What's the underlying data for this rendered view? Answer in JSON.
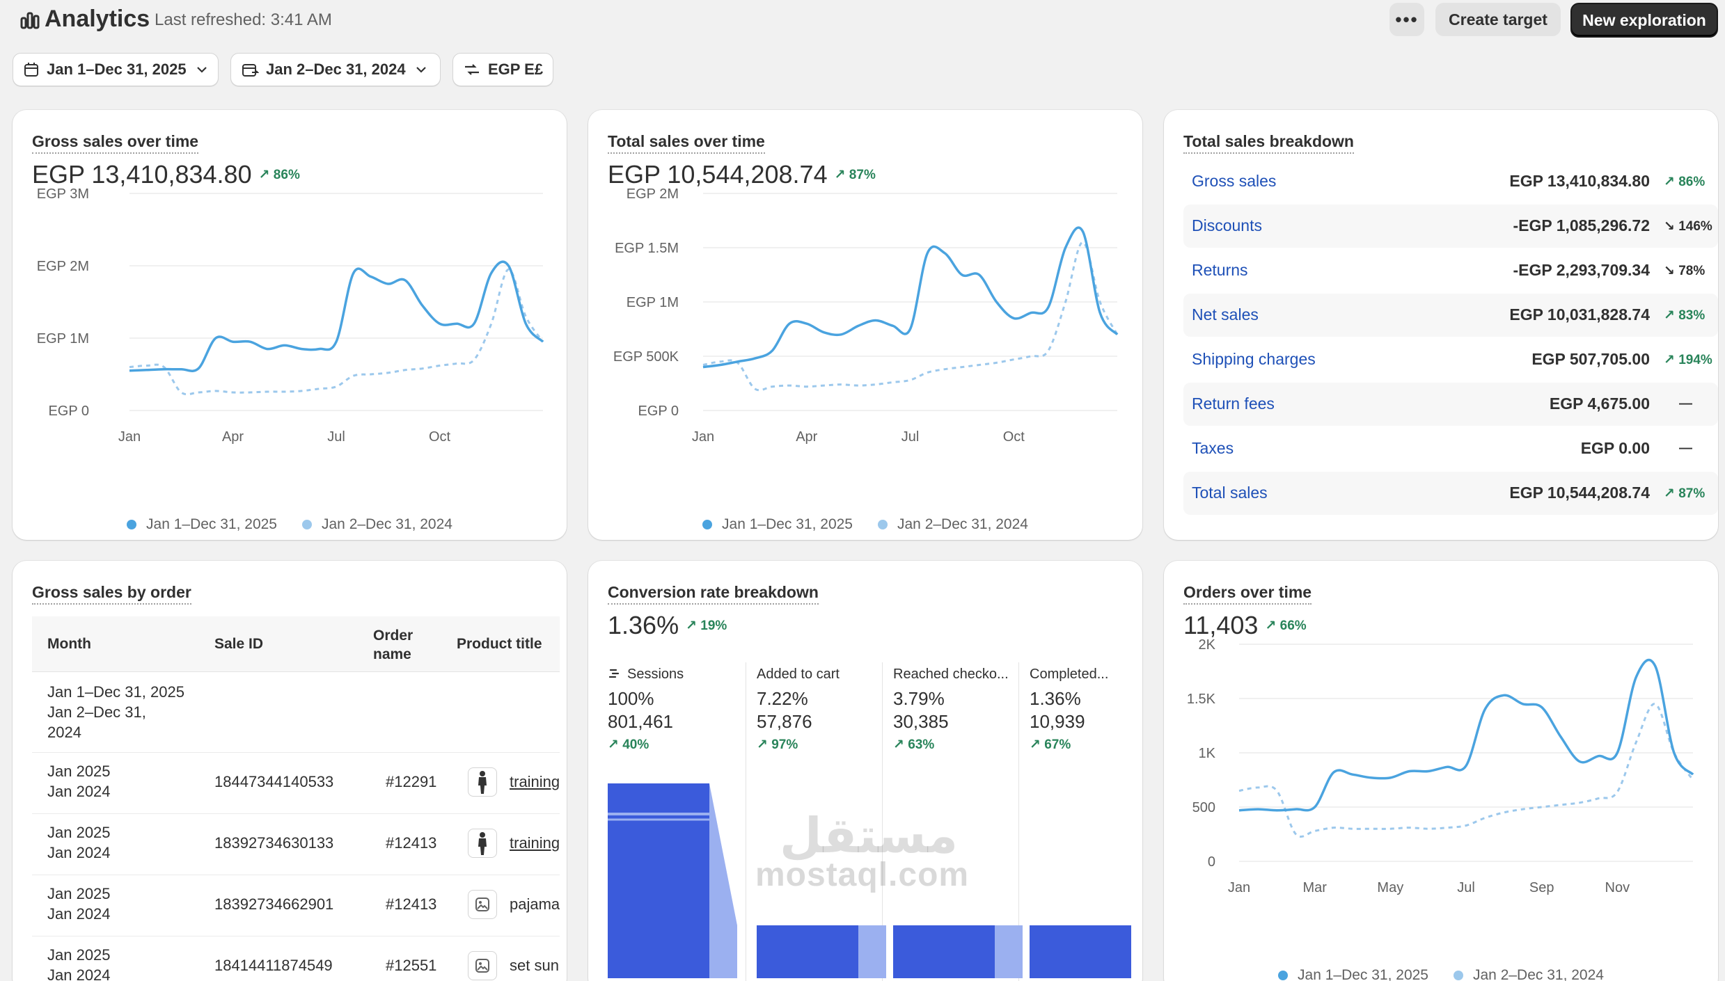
{
  "header": {
    "title": "Analytics",
    "last_refreshed": "Last refreshed: 3:41 AM",
    "more_label": "•••",
    "create_target_label": "Create target",
    "new_exploration_label": "New exploration"
  },
  "filters": {
    "date_range": "Jan 1–Dec 31, 2025",
    "compare_range": "Jan 2–Dec 31, 2024",
    "currency": "EGP E£"
  },
  "colors": {
    "primary_series": "#4aa3df",
    "comparison_series": "#9cc8ec",
    "positive_delta": "#29845a",
    "link": "#1e50b7",
    "funnel_bar": "#3b5bdb"
  },
  "gross_sales_card": {
    "title": "Gross sales over time",
    "value": "EGP 13,410,834.80",
    "delta": "↗ 86%",
    "y_ticks": [
      "EGP 3M",
      "EGP 2M",
      "EGP 1M",
      "EGP 0"
    ],
    "x_ticks": [
      "Jan",
      "Apr",
      "Jul",
      "Oct"
    ],
    "legend": [
      "Jan 1–Dec 31, 2025",
      "Jan 2–Dec 31, 2024"
    ]
  },
  "total_sales_card": {
    "title": "Total sales over time",
    "value": "EGP 10,544,208.74",
    "delta": "↗ 87%",
    "y_ticks": [
      "EGP 2M",
      "EGP 1.5M",
      "EGP 1M",
      "EGP 500K",
      "EGP 0"
    ],
    "x_ticks": [
      "Jan",
      "Apr",
      "Jul",
      "Oct"
    ],
    "legend": [
      "Jan 1–Dec 31, 2025",
      "Jan 2–Dec 31, 2024"
    ]
  },
  "breakdown_card": {
    "title": "Total sales breakdown",
    "rows": [
      {
        "label": "Gross sales",
        "value": "EGP 13,410,834.80",
        "delta": "↗ 86%",
        "trend": "up"
      },
      {
        "label": "Discounts",
        "value": "-EGP 1,085,296.72",
        "delta": "↘ 146%",
        "trend": "down"
      },
      {
        "label": "Returns",
        "value": "-EGP 2,293,709.34",
        "delta": "↘ 78%",
        "trend": "down"
      },
      {
        "label": "Net sales",
        "value": "EGP 10,031,828.74",
        "delta": "↗ 83%",
        "trend": "up"
      },
      {
        "label": "Shipping charges",
        "value": "EGP 507,705.00",
        "delta": "↗ 194%",
        "trend": "up"
      },
      {
        "label": "Return fees",
        "value": "EGP 4,675.00",
        "delta": "—",
        "trend": "none"
      },
      {
        "label": "Taxes",
        "value": "EGP 0.00",
        "delta": "—",
        "trend": "none"
      },
      {
        "label": "Total sales",
        "value": "EGP 10,544,208.74",
        "delta": "↗ 87%",
        "trend": "up"
      }
    ]
  },
  "orders_table_card": {
    "title": "Gross sales by order",
    "columns": [
      "Month",
      "Sale ID",
      "Order name",
      "Product title"
    ],
    "summary_row": {
      "line1": "Jan 1–Dec 31, 2025",
      "line2": "Jan 2–Dec 31,",
      "line3": "2024"
    },
    "rows": [
      {
        "month": "Jan 2025",
        "month_prev": "Jan 2024",
        "sale_id": "18447344140533",
        "order": "#12291",
        "product": "training",
        "thumb": "person-icon"
      },
      {
        "month": "Jan 2025",
        "month_prev": "Jan 2024",
        "sale_id": "18392734630133",
        "order": "#12413",
        "product": "training",
        "thumb": "person-icon"
      },
      {
        "month": "Jan 2025",
        "month_prev": "Jan 2024",
        "sale_id": "18392734662901",
        "order": "#12413",
        "product": "pajama",
        "thumb": "image-icon"
      },
      {
        "month": "Jan 2025",
        "month_prev": "Jan 2024",
        "sale_id": "18414411874549",
        "order": "#12551",
        "product": "set sun",
        "thumb": "image-icon"
      }
    ]
  },
  "conversion_card": {
    "title": "Conversion rate breakdown",
    "value": "1.36%",
    "delta": "↗ 19%",
    "steps": [
      {
        "label": "Sessions",
        "pct": "100%",
        "count": "801,461",
        "delta": "↗ 40%",
        "fraction": 1.0
      },
      {
        "label": "Added to cart",
        "pct": "7.22%",
        "count": "57,876",
        "delta": "↗ 97%",
        "fraction": 0.0722
      },
      {
        "label": "Reached checko...",
        "pct": "3.79%",
        "count": "30,385",
        "delta": "↗ 63%",
        "fraction": 0.0379
      },
      {
        "label": "Completed...",
        "pct": "1.36%",
        "count": "10,939",
        "delta": "↗ 67%",
        "fraction": 0.0136
      }
    ]
  },
  "orders_card": {
    "title": "Orders over time",
    "value": "11,403",
    "delta": "↗ 66%",
    "y_ticks": [
      "2K",
      "1.5K",
      "1K",
      "500",
      "0"
    ],
    "x_ticks": [
      "Jan",
      "Mar",
      "May",
      "Jul",
      "Sep",
      "Nov"
    ],
    "legend": [
      "Jan 1–Dec 31, 2025",
      "Jan 2–Dec 31, 2024"
    ]
  },
  "watermark": {
    "latin": "mostaql.com",
    "arabic": "مستقل"
  },
  "chart_data": [
    {
      "type": "line",
      "title": "Gross sales over time",
      "x_range": [
        "Jan",
        "Dec"
      ],
      "ylim": [
        0,
        3000000
      ],
      "series": [
        {
          "name": "Jan 1–Dec 31, 2025",
          "x": [
            0,
            0.5,
            1,
            1.5,
            2,
            2.5,
            3,
            3.5,
            4,
            4.5,
            5,
            5.5,
            6,
            6.5,
            7,
            7.5,
            8,
            8.5,
            9,
            9.5,
            10,
            10.5,
            11,
            11.5,
            12
          ],
          "values": [
            550000,
            560000,
            570000,
            570000,
            580000,
            1000000,
            950000,
            950000,
            850000,
            900000,
            850000,
            850000,
            950000,
            1900000,
            1850000,
            1750000,
            1800000,
            1450000,
            1200000,
            1200000,
            1200000,
            1900000,
            2000000,
            1200000,
            950000
          ]
        },
        {
          "name": "Jan 2–Dec 31, 2024",
          "x": [
            0,
            0.5,
            1,
            1.5,
            2,
            2.5,
            3,
            3.5,
            4,
            4.5,
            5,
            5.5,
            6,
            6.5,
            7,
            7.5,
            8,
            8.5,
            9,
            9.5,
            10,
            10.5,
            11,
            11.5,
            12
          ],
          "values": [
            600000,
            620000,
            600000,
            250000,
            250000,
            270000,
            250000,
            250000,
            260000,
            260000,
            270000,
            300000,
            330000,
            480000,
            500000,
            520000,
            560000,
            580000,
            620000,
            650000,
            700000,
            1200000,
            1950000,
            1300000,
            950000
          ]
        }
      ]
    },
    {
      "type": "line",
      "title": "Total sales over time",
      "x_range": [
        "Jan",
        "Dec"
      ],
      "ylim": [
        0,
        2000000
      ],
      "series": [
        {
          "name": "Jan 1–Dec 31, 2025",
          "x": [
            0,
            0.5,
            1,
            1.5,
            2,
            2.5,
            3,
            3.5,
            4,
            4.5,
            5,
            5.5,
            6,
            6.5,
            7,
            7.5,
            8,
            8.5,
            9,
            9.5,
            10,
            10.5,
            11,
            11.5,
            12
          ],
          "values": [
            400000,
            420000,
            450000,
            480000,
            550000,
            800000,
            800000,
            720000,
            700000,
            780000,
            830000,
            780000,
            750000,
            1450000,
            1450000,
            1250000,
            1250000,
            1000000,
            850000,
            900000,
            950000,
            1500000,
            1650000,
            900000,
            700000
          ]
        },
        {
          "name": "Jan 2–Dec 31, 2024",
          "x": [
            0,
            0.5,
            1,
            1.5,
            2,
            2.5,
            3,
            3.5,
            4,
            4.5,
            5,
            5.5,
            6,
            6.5,
            7,
            7.5,
            8,
            8.5,
            9,
            9.5,
            10,
            10.5,
            11,
            11.5,
            12
          ],
          "values": [
            420000,
            450000,
            440000,
            200000,
            220000,
            230000,
            220000,
            230000,
            240000,
            230000,
            240000,
            260000,
            280000,
            350000,
            380000,
            400000,
            420000,
            440000,
            470000,
            500000,
            550000,
            1000000,
            1550000,
            1000000,
            700000
          ]
        }
      ]
    },
    {
      "type": "line",
      "title": "Orders over time",
      "x_range": [
        "Jan",
        "Dec"
      ],
      "ylim": [
        0,
        2000
      ],
      "series": [
        {
          "name": "Jan 1–Dec 31, 2025",
          "x": [
            0,
            0.5,
            1,
            1.5,
            2,
            2.5,
            3,
            3.5,
            4,
            4.5,
            5,
            5.5,
            6,
            6.5,
            7,
            7.5,
            8,
            8.5,
            9,
            9.5,
            10,
            10.5,
            11,
            11.5,
            12
          ],
          "values": [
            470,
            480,
            470,
            480,
            500,
            820,
            800,
            770,
            770,
            830,
            830,
            870,
            880,
            1400,
            1530,
            1450,
            1420,
            1150,
            920,
            970,
            1000,
            1700,
            1800,
            1000,
            800
          ]
        },
        {
          "name": "Jan 2–Dec 31, 2024",
          "x": [
            0,
            0.5,
            1,
            1.5,
            2,
            2.5,
            3,
            3.5,
            4,
            4.5,
            5,
            5.5,
            6,
            6.5,
            7,
            7.5,
            8,
            8.5,
            9,
            9.5,
            10,
            10.5,
            11,
            11.5,
            12
          ],
          "values": [
            650,
            680,
            650,
            250,
            280,
            310,
            300,
            300,
            300,
            310,
            300,
            310,
            330,
            400,
            450,
            480,
            500,
            520,
            540,
            580,
            640,
            1100,
            1450,
            1000,
            750
          ]
        }
      ]
    }
  ]
}
